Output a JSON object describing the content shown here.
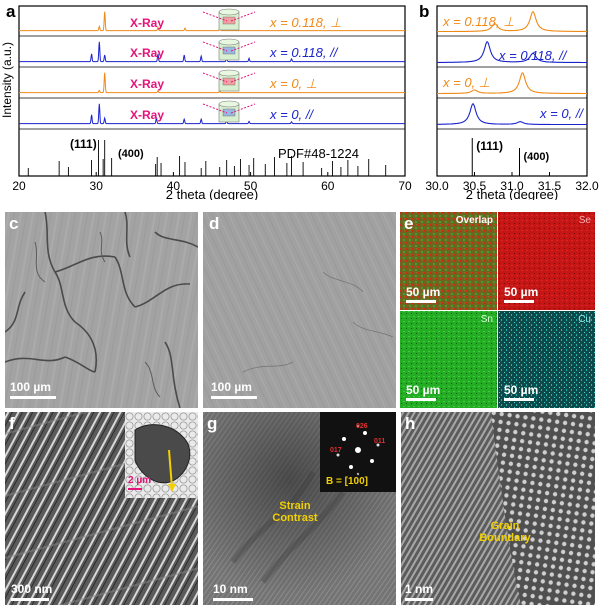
{
  "figure": {
    "panel_labels": {
      "a": "a",
      "b": "b",
      "c": "c",
      "d": "d",
      "e": "e",
      "f": "f",
      "g": "g",
      "h": "h"
    },
    "colors": {
      "orange": "#f08a17",
      "blue": "#1a23cc",
      "magenta": "#e4147a",
      "sem_gray": "#9a9a9a",
      "se_red": "#d21414",
      "sn_green": "#21b521",
      "cu_cyan": "#1fb7b7"
    }
  },
  "panel_a": {
    "ylabel": "Intensity (a.u.)",
    "xlabel": "2 theta (degree)",
    "xticks": [
      "20",
      "30",
      "40",
      "50",
      "60",
      "70"
    ],
    "xrange": [
      20,
      70
    ],
    "xray_label": "X-Ray",
    "traces": [
      {
        "label": "x = 0.118, ⊥",
        "color": "orange"
      },
      {
        "label": "x = 0.118, //",
        "color": "blue"
      },
      {
        "label": "x = 0, ⊥",
        "color": "orange"
      },
      {
        "label": "x = 0, //",
        "color": "blue"
      }
    ],
    "ref_label": "PDF#48-1224",
    "peak_111": "(111)",
    "peak_400": "(400)",
    "ref_peaks": [
      21.2,
      25.2,
      26.4,
      29.4,
      30.3,
      30.9,
      31.1,
      32.0,
      37.7,
      37.9,
      38.4,
      40.8,
      41.5,
      43.6,
      44.2,
      46.0,
      46.9,
      47.9,
      48.7,
      49.8,
      50.4,
      51.9,
      53.1,
      54.7,
      55.3,
      56.8,
      59.2,
      60.6,
      61.7,
      62.6,
      63.9,
      65.3,
      67.5
    ]
  },
  "panel_b": {
    "xlabel": "2 theta (degree)",
    "xticks": [
      "30.0",
      "30.5",
      "31.0",
      "31.5",
      "32.0"
    ],
    "xrange": [
      30.0,
      32.0
    ],
    "traces": [
      {
        "label": "x = 0.118, ⊥",
        "color": "orange",
        "peaks": [
          [
            30.77,
            0.35
          ],
          [
            31.28,
            0.9
          ]
        ]
      },
      {
        "label": "x = 0.118, //",
        "color": "blue",
        "peaks": [
          [
            30.67,
            0.9
          ],
          [
            31.28,
            0.4
          ]
        ]
      },
      {
        "label": "x = 0, ⊥",
        "color": "orange",
        "peaks": [
          [
            30.5,
            0.15
          ],
          [
            31.14,
            0.9
          ]
        ]
      },
      {
        "label": "x = 0, //",
        "color": "blue",
        "peaks": [
          [
            30.48,
            0.9
          ],
          [
            31.11,
            0.12
          ]
        ]
      }
    ],
    "peak_111": "(111)",
    "peak_400": "(400)"
  },
  "panel_c": {
    "scalebar": "100 µm"
  },
  "panel_d": {
    "scalebar": "100 µm"
  },
  "panel_e": {
    "maps": [
      {
        "name": "Overlap",
        "scalebar": "50 µm"
      },
      {
        "name": "Se",
        "scalebar": "50 µm"
      },
      {
        "name": "Sn",
        "scalebar": "50 µm"
      },
      {
        "name": "Cu",
        "scalebar": "50 µm"
      }
    ]
  },
  "panel_f": {
    "scalebar": "300 nm",
    "inset_scalebar": "2 µm"
  },
  "panel_g": {
    "scalebar": "10 nm",
    "annotation": "Strain\nContrast",
    "inset_label": "B = [100]",
    "fft_spots": [
      "026",
      "011",
      "017"
    ]
  },
  "panel_h": {
    "scalebar": "1 nm",
    "annotation": "Grain\nBoundary"
  }
}
